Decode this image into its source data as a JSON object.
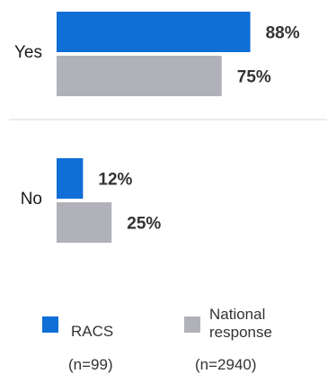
{
  "chart_data": {
    "type": "bar",
    "orientation": "horizontal",
    "categories": [
      "Yes",
      "No"
    ],
    "series": [
      {
        "name": "RACS",
        "values": [
          88,
          12
        ],
        "labels": [
          "88%",
          "12%"
        ],
        "color": "#0f6fd6",
        "n_label": "(n=99)"
      },
      {
        "name": "National response",
        "values": [
          75,
          25
        ],
        "labels": [
          "75%",
          "25%"
        ],
        "color": "#b1b1b9",
        "n_label": "(n=2940)"
      }
    ],
    "xlim": [
      0,
      100
    ],
    "grid": false,
    "divider_color": "#d8d8dc",
    "legend_position": "bottom"
  },
  "legend": {
    "racs_label": "RACS",
    "racs_n": "(n=99)",
    "national_label_line1": "National",
    "national_label_line2": "response",
    "national_n": "(n=2940)"
  }
}
